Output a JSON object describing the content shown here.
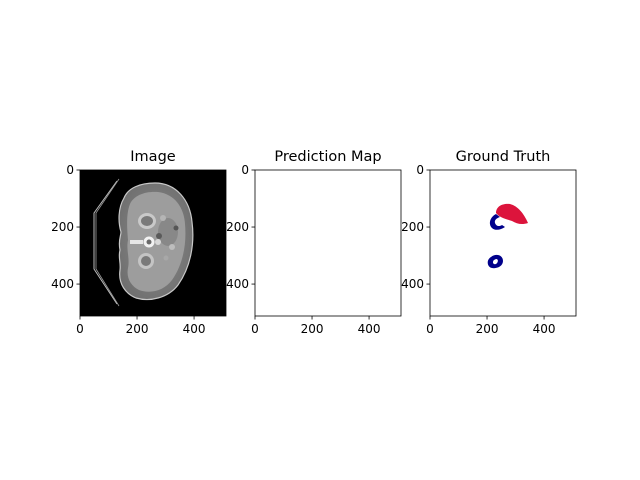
{
  "chart_data": [
    {
      "type": "image",
      "title": "Image",
      "xlim": [
        0,
        512
      ],
      "ylim": [
        512,
        0
      ],
      "x_ticks": [
        0,
        200,
        400
      ],
      "y_ticks": [
        0,
        200,
        400
      ],
      "colormap": "gray",
      "content": "axial-ct-abdomen-slice"
    },
    {
      "type": "image",
      "title": "Prediction Map",
      "xlim": [
        0,
        512
      ],
      "ylim": [
        512,
        0
      ],
      "x_ticks": [
        0,
        200,
        400
      ],
      "y_ticks": [
        0,
        200,
        400
      ],
      "content": "empty"
    },
    {
      "type": "image",
      "title": "Ground Truth",
      "xlim": [
        0,
        512
      ],
      "ylim": [
        512,
        0
      ],
      "x_ticks": [
        0,
        200,
        400
      ],
      "y_ticks": [
        0,
        200,
        400
      ],
      "content": "segmentation-mask",
      "colors": {
        "red_region": "#dc143c",
        "blue_region": "#00008b"
      }
    }
  ]
}
